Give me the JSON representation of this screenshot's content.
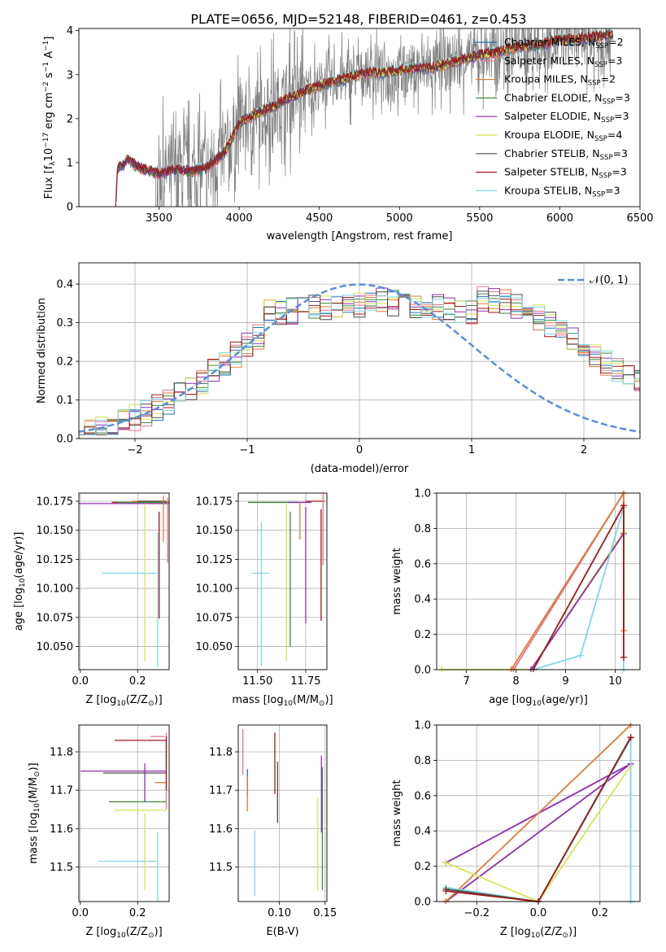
{
  "figure_title": "PLATE=0656, MJD=52148, FIBERID=0461, z=0.453",
  "legend": [
    {
      "name": "Chabrier MILES, N",
      "sub": "SSP",
      "suffix": "=2",
      "color": "#1f77b4"
    },
    {
      "name": "Salpeter MILES, N",
      "sub": "SSP",
      "suffix": "=3",
      "color": "#e8738a"
    },
    {
      "name": "Kroupa MILES, N",
      "sub": "SSP",
      "suffix": "=2",
      "color": "#e07b39"
    },
    {
      "name": "Chabrier ELODIE, N",
      "sub": "SSP",
      "suffix": "=3",
      "color": "#3c8a3c"
    },
    {
      "name": "Salpeter ELODIE, N",
      "sub": "SSP",
      "suffix": "=3",
      "color": "#8e2fb0"
    },
    {
      "name": "Kroupa ELODIE, N",
      "sub": "SSP",
      "suffix": "=4",
      "color": "#d9e356"
    },
    {
      "name": "Chabrier STELIB, N",
      "sub": "SSP",
      "suffix": "=3",
      "color": "#4d4d4d"
    },
    {
      "name": "Salpeter STELIB, N",
      "sub": "SSP",
      "suffix": "=3",
      "color": "#a01818"
    },
    {
      "name": "Kroupa STELIB, N",
      "sub": "SSP",
      "suffix": "=3",
      "color": "#7fd8e3"
    }
  ],
  "colors": {
    "data": "#808080",
    "gauss": "#5b8ed6",
    "grid": "#b0b0b0"
  },
  "chart_data": [
    {
      "id": "spectrum",
      "type": "line",
      "xlabel": "wavelength [Angstrom, rest frame]",
      "ylabel_main": "Flux [f",
      "ylabel_sub": "λ",
      "ylabel_rest": "10",
      "ylabel_exp": "−17",
      "ylabel_tail": " erg cm",
      "ylabel_exp2": "−2",
      "ylabel_tail2": " s",
      "ylabel_exp3": "−1",
      "ylabel_tail3": " A",
      "ylabel_exp4": "−1",
      "ylabel_end": "]",
      "xlim": [
        3000,
        6500
      ],
      "ylim": [
        0,
        4.05
      ],
      "xticks": [
        "3500",
        "4000",
        "4500",
        "5000",
        "5500",
        "6000",
        "6500"
      ],
      "xtick_values": [
        3500,
        4000,
        4500,
        5000,
        5500,
        6000,
        6500
      ],
      "yticks": [
        "0",
        "1",
        "2",
        "3",
        "4"
      ],
      "ytick_values": [
        0,
        1,
        2,
        3,
        4
      ],
      "model_trend": [
        [
          3230,
          0.0
        ],
        [
          3240,
          0.85
        ],
        [
          3280,
          0.95
        ],
        [
          3300,
          1.1
        ],
        [
          3350,
          0.95
        ],
        [
          3400,
          0.85
        ],
        [
          3500,
          0.75
        ],
        [
          3600,
          0.85
        ],
        [
          3700,
          0.8
        ],
        [
          3800,
          0.9
        ],
        [
          3900,
          1.2
        ],
        [
          3950,
          1.5
        ],
        [
          4000,
          1.9
        ],
        [
          4100,
          2.1
        ],
        [
          4200,
          2.25
        ],
        [
          4300,
          2.45
        ],
        [
          4400,
          2.6
        ],
        [
          4500,
          2.75
        ],
        [
          4600,
          2.85
        ],
        [
          4700,
          2.95
        ],
        [
          4800,
          3.05
        ],
        [
          4900,
          3.05
        ],
        [
          5000,
          3.1
        ],
        [
          5100,
          3.15
        ],
        [
          5200,
          3.15
        ],
        [
          5300,
          3.25
        ],
        [
          5400,
          3.35
        ],
        [
          5500,
          3.45
        ],
        [
          5600,
          3.5
        ],
        [
          5700,
          3.6
        ],
        [
          5800,
          3.65
        ],
        [
          5900,
          3.7
        ],
        [
          6000,
          3.8
        ],
        [
          6100,
          3.8
        ],
        [
          6200,
          3.85
        ],
        [
          6300,
          3.9
        ]
      ]
    },
    {
      "id": "residuals",
      "type": "line",
      "xlabel": "(data-model)/error",
      "ylabel": "Normed distribution",
      "xlim": [
        -2.5,
        2.5
      ],
      "ylim": [
        0,
        0.455
      ],
      "xticks": [
        "−2",
        "−1",
        "0",
        "1",
        "2"
      ],
      "xtick_values": [
        -2,
        -1,
        0,
        1,
        2
      ],
      "yticks": [
        "0.0",
        "0.1",
        "0.2",
        "0.3",
        "0.4"
      ],
      "ytick_values": [
        0,
        0.1,
        0.2,
        0.3,
        0.4
      ],
      "gauss_label": "𝒩(0, 1)"
    },
    {
      "id": "age_vs_Z",
      "type": "scatter",
      "xlabel": "Z [log",
      "xlabel_sub": "10",
      "xlabel_rest": "(Z/Z",
      "xlabel_sub2": "⊙",
      "xlabel_end": ")]",
      "ylabel": "age  [log",
      "ylabel_sub": "10",
      "ylabel_rest": "(age/yr)]",
      "xlim": [
        -0.005,
        0.31
      ],
      "ylim": [
        10.03,
        10.182
      ],
      "xticks": [
        "0.0",
        "0.2"
      ],
      "xtick_values": [
        0,
        0.2
      ],
      "yticks": [
        "10.050",
        "10.075",
        "10.100",
        "10.125",
        "10.150",
        "10.175"
      ],
      "ytick_values": [
        10.05,
        10.075,
        10.1,
        10.125,
        10.15,
        10.175
      ],
      "errorbars": [
        {
          "series": 4,
          "x": 0.11,
          "y": 10.173,
          "xerr": 0.2,
          "yerr": 0.0
        },
        {
          "series": 7,
          "x": 0.21,
          "y": 10.174,
          "xerr": 0.1,
          "yerr": 0.0
        },
        {
          "series": 3,
          "x": 0.215,
          "y": 10.174,
          "xerr": 0.085,
          "yerr": 0.0
        },
        {
          "series": 2,
          "x": 0.24,
          "y": 10.175,
          "xerr": 0.06,
          "yerr": 0.0
        },
        {
          "series": 6,
          "x": 0.25,
          "y": 10.175,
          "xerr": 0.05,
          "yerr": 0.0
        },
        {
          "series": 5,
          "x": 0.225,
          "y": 10.105,
          "xerr": 0.0,
          "yerr": 0.068
        },
        {
          "series": 8,
          "x": 0.17,
          "y": 10.113,
          "xerr": 0.095,
          "yerr": 0.0
        },
        {
          "series": 8,
          "x": 0.27,
          "y": 10.09,
          "xerr": 0.0,
          "yerr": 0.058
        },
        {
          "series": 7,
          "x": 0.275,
          "y": 10.12,
          "xerr": 0.0,
          "yerr": 0.046
        },
        {
          "series": 1,
          "x": 0.305,
          "y": 10.15,
          "xerr": 0.0,
          "yerr": 0.028
        },
        {
          "series": 2,
          "x": 0.29,
          "y": 10.16,
          "xerr": 0.0,
          "yerr": 0.02
        }
      ]
    },
    {
      "id": "age_vs_mass",
      "type": "scatter",
      "xlabel": "mass [log",
      "xlabel_sub": "10",
      "xlabel_rest": "(M/M",
      "xlabel_sub2": "⊙",
      "xlabel_end": ")]",
      "xlim": [
        11.4,
        11.86
      ],
      "ylim": [
        10.03,
        10.182
      ],
      "xticks": [
        "11.50",
        "11.75"
      ],
      "xtick_values": [
        11.5,
        11.75
      ],
      "yticks": [
        "10.050",
        "10.075",
        "10.100",
        "10.125",
        "10.150",
        "10.175"
      ],
      "ytick_values": [
        10.05,
        10.075,
        10.1,
        10.125,
        10.15,
        10.175
      ],
      "errorbars": [
        {
          "series": 3,
          "x": 11.58,
          "y": 10.174,
          "xerr": 0.13,
          "yerr": 0.0
        },
        {
          "series": 4,
          "x": 11.72,
          "y": 10.174,
          "xerr": 0.06,
          "yerr": 0.0
        },
        {
          "series": 7,
          "x": 11.8,
          "y": 10.175,
          "xerr": 0.05,
          "yerr": 0.0
        },
        {
          "series": 1,
          "x": 11.84,
          "y": 10.16,
          "xerr": 0.0,
          "yerr": 0.04
        },
        {
          "series": 8,
          "x": 11.515,
          "y": 10.113,
          "xerr": 0.045,
          "yerr": 0.0
        },
        {
          "series": 8,
          "x": 11.52,
          "y": 10.095,
          "xerr": 0.0,
          "yerr": 0.062
        },
        {
          "series": 5,
          "x": 11.65,
          "y": 10.105,
          "xerr": 0.0,
          "yerr": 0.068
        },
        {
          "series": 3,
          "x": 11.67,
          "y": 10.108,
          "xerr": 0.0,
          "yerr": 0.058
        },
        {
          "series": 4,
          "x": 11.75,
          "y": 10.12,
          "xerr": 0.0,
          "yerr": 0.05
        },
        {
          "series": 7,
          "x": 11.83,
          "y": 10.12,
          "xerr": 0.0,
          "yerr": 0.048
        },
        {
          "series": 2,
          "x": 11.72,
          "y": 10.158,
          "xerr": 0.0,
          "yerr": 0.016
        }
      ]
    },
    {
      "id": "weight_vs_age",
      "type": "line",
      "xlabel": "age  [log",
      "xlabel_sub": "10",
      "xlabel_rest": "(age/yr)]",
      "ylabel": "mass weight",
      "xlim": [
        6.4,
        10.5
      ],
      "ylim": [
        0,
        1.0
      ],
      "xticks": [
        "7",
        "8",
        "9",
        "10"
      ],
      "xtick_values": [
        7,
        8,
        9,
        10
      ],
      "yticks": [
        "0.0",
        "0.2",
        "0.4",
        "0.6",
        "0.8",
        "1.0"
      ],
      "ytick_values": [
        0,
        0.2,
        0.4,
        0.6,
        0.8,
        1.0
      ],
      "series": [
        {
          "series": 5,
          "points": [
            [
              6.5,
              0.0
            ],
            [
              8.3,
              0.0
            ],
            [
              10.17,
              0.78
            ]
          ]
        },
        {
          "series": 4,
          "points": [
            [
              8.3,
              0.0
            ],
            [
              10.17,
              0.77
            ]
          ]
        },
        {
          "series": 8,
          "points": [
            [
              8.35,
              0.0
            ],
            [
              9.3,
              0.08
            ],
            [
              10.17,
              0.92
            ],
            [
              10.17,
              0.0
            ]
          ]
        },
        {
          "series": 1,
          "points": [
            [
              7.95,
              0.0
            ],
            [
              10.17,
              1.0
            ]
          ]
        },
        {
          "series": 2,
          "points": [
            [
              7.9,
              0.0
            ],
            [
              10.17,
              1.0
            ],
            [
              10.17,
              0.22
            ]
          ]
        },
        {
          "series": 7,
          "points": [
            [
              8.35,
              0.0
            ],
            [
              10.17,
              0.93
            ],
            [
              10.17,
              0.07
            ]
          ]
        }
      ]
    },
    {
      "id": "mass_vs_Z",
      "type": "scatter",
      "xlabel": "Z [log",
      "xlabel_sub": "10",
      "xlabel_rest": "(Z/Z",
      "xlabel_sub2": "⊙",
      "xlabel_end": ")]",
      "ylabel": "mass [log",
      "ylabel_sub": "10",
      "ylabel_rest": "(M/M",
      "ylabel_sub2": "⊙",
      "ylabel_end": ")]",
      "xlim": [
        -0.005,
        0.31
      ],
      "ylim": [
        11.41,
        11.87
      ],
      "xticks": [
        "0.0",
        "0.2"
      ],
      "xtick_values": [
        0,
        0.2
      ],
      "yticks": [
        "11.5",
        "11.6",
        "11.7",
        "11.8"
      ],
      "ytick_values": [
        11.5,
        11.6,
        11.7,
        11.8
      ],
      "errorbars": [
        {
          "series": 4,
          "x": 0.15,
          "y": 11.75,
          "xerr": 0.15,
          "yerr": 0.0
        },
        {
          "series": 6,
          "x": 0.19,
          "y": 11.745,
          "xerr": 0.11,
          "yerr": 0.0
        },
        {
          "series": 7,
          "x": 0.21,
          "y": 11.83,
          "xerr": 0.09,
          "yerr": 0.0
        },
        {
          "series": 3,
          "x": 0.2,
          "y": 11.67,
          "xerr": 0.1,
          "yerr": 0.0
        },
        {
          "series": 5,
          "x": 0.21,
          "y": 11.648,
          "xerr": 0.09,
          "yerr": 0.0
        },
        {
          "series": 8,
          "x": 0.165,
          "y": 11.515,
          "xerr": 0.1,
          "yerr": 0.0
        },
        {
          "series": 1,
          "x": 0.27,
          "y": 11.84,
          "xerr": 0.025,
          "yerr": 0.0
        },
        {
          "series": 2,
          "x": 0.28,
          "y": 11.72,
          "xerr": 0.02,
          "yerr": 0.0
        },
        {
          "series": 4,
          "x": 0.225,
          "y": 11.72,
          "xerr": 0.0,
          "yerr": 0.05
        },
        {
          "series": 5,
          "x": 0.225,
          "y": 11.54,
          "xerr": 0.0,
          "yerr": 0.1
        },
        {
          "series": 8,
          "x": 0.27,
          "y": 11.5,
          "xerr": 0.0,
          "yerr": 0.09
        },
        {
          "series": 1,
          "x": 0.3,
          "y": 11.75,
          "xerr": 0.0,
          "yerr": 0.1
        },
        {
          "series": 7,
          "x": 0.3,
          "y": 11.77,
          "xerr": 0.0,
          "yerr": 0.07
        }
      ]
    },
    {
      "id": "mass_vs_EBV",
      "type": "scatter",
      "xlabel": "E(B-V)",
      "xlim": [
        0.055,
        0.152
      ],
      "ylim": [
        11.41,
        11.87
      ],
      "xticks": [
        "0.10",
        "0.15"
      ],
      "xtick_values": [
        0.1,
        0.15
      ],
      "yticks": [
        "11.5",
        "11.6",
        "11.7",
        "11.8"
      ],
      "ytick_values": [
        11.5,
        11.6,
        11.7,
        11.8
      ],
      "errorbars": [
        {
          "series": 1,
          "x": 0.06,
          "y": 11.8,
          "xerr": 0.0,
          "yerr": 0.06
        },
        {
          "series": 0,
          "x": 0.065,
          "y": 11.72,
          "xerr": 0.0,
          "yerr": 0.035
        },
        {
          "series": 2,
          "x": 0.065,
          "y": 11.69,
          "xerr": 0.0,
          "yerr": 0.045
        },
        {
          "series": 8,
          "x": 0.073,
          "y": 11.51,
          "xerr": 0.0,
          "yerr": 0.085
        },
        {
          "series": 7,
          "x": 0.095,
          "y": 11.77,
          "xerr": 0.0,
          "yerr": 0.08
        },
        {
          "series": 6,
          "x": 0.098,
          "y": 11.695,
          "xerr": 0.0,
          "yerr": 0.08
        },
        {
          "series": 5,
          "x": 0.142,
          "y": 11.56,
          "xerr": 0.0,
          "yerr": 0.12
        },
        {
          "series": 4,
          "x": 0.146,
          "y": 11.69,
          "xerr": 0.0,
          "yerr": 0.1
        },
        {
          "series": 3,
          "x": 0.147,
          "y": 11.6,
          "xerr": 0.0,
          "yerr": 0.16
        }
      ]
    },
    {
      "id": "weight_vs_Z",
      "type": "line",
      "xlabel": "Z [log",
      "xlabel_sub": "10",
      "xlabel_rest": "(Z/Z",
      "xlabel_sub2": "⊙",
      "xlabel_end": ")]",
      "ylabel": "mass weight",
      "xlim": [
        -0.33,
        0.33
      ],
      "ylim": [
        0,
        1.0
      ],
      "xticks": [
        "−0.2",
        "0.0",
        "0.2"
      ],
      "xtick_values": [
        -0.2,
        0.0,
        0.2
      ],
      "yticks": [
        "0.0",
        "0.2",
        "0.4",
        "0.6",
        "0.8",
        "1.0"
      ],
      "ytick_values": [
        0,
        0.2,
        0.4,
        0.6,
        0.8,
        1.0
      ],
      "series": [
        {
          "series": 4,
          "points": [
            [
              -0.3,
              0.0
            ],
            [
              0.3,
              0.78
            ]
          ]
        },
        {
          "series": 4,
          "points": [
            [
              -0.3,
              0.22
            ],
            [
              0.3,
              0.78
            ]
          ]
        },
        {
          "series": 2,
          "points": [
            [
              -0.3,
              0.0
            ],
            [
              0.3,
              1.0
            ]
          ]
        },
        {
          "series": 5,
          "points": [
            [
              -0.3,
              0.22
            ],
            [
              0.0,
              0.0
            ],
            [
              0.3,
              0.77
            ],
            [
              0.3,
              0.0
            ]
          ]
        },
        {
          "series": 8,
          "points": [
            [
              -0.3,
              0.08
            ],
            [
              0.0,
              0.0
            ],
            [
              0.3,
              0.92
            ],
            [
              0.3,
              0.0
            ]
          ]
        },
        {
          "series": 6,
          "points": [
            [
              -0.3,
              0.07
            ],
            [
              0.0,
              0.0
            ],
            [
              0.3,
              0.93
            ]
          ]
        },
        {
          "series": 7,
          "points": [
            [
              -0.3,
              0.06
            ],
            [
              0.0,
              0.0
            ],
            [
              0.3,
              0.93
            ]
          ]
        }
      ]
    }
  ]
}
